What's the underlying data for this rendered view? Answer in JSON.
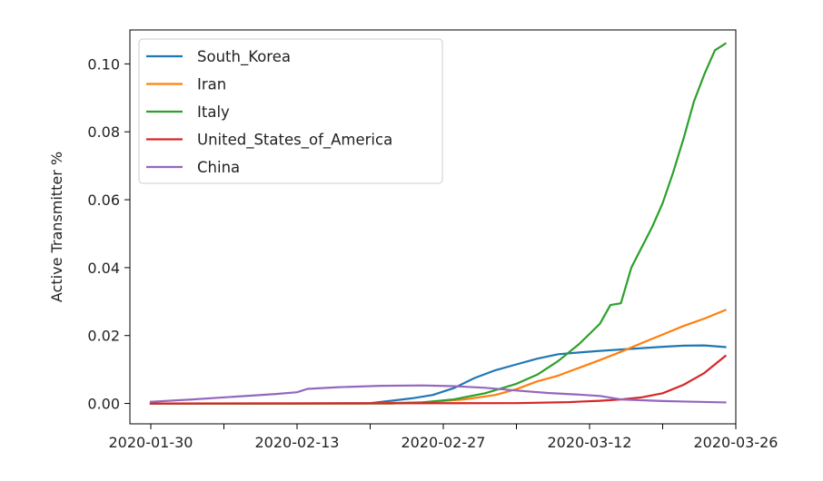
{
  "chart_data": {
    "type": "line",
    "title": "",
    "xlabel": "",
    "ylabel": "Active Transmitter %",
    "x_type": "date",
    "xlim": [
      "2020-01-28",
      "2020-03-26"
    ],
    "ylim": [
      -0.006,
      0.11
    ],
    "x_ticks": [
      "2020-01-30",
      "2020-02-06",
      "2020-02-13",
      "2020-02-20",
      "2020-02-27",
      "2020-03-05",
      "2020-03-12",
      "2020-03-19",
      "2020-03-26"
    ],
    "x_tick_labels": [
      "2020-01-30",
      "",
      "2020-02-13",
      "",
      "2020-02-27",
      "",
      "2020-03-12",
      "",
      "2020-03-26"
    ],
    "y_ticks": [
      0.0,
      0.02,
      0.04,
      0.06,
      0.08,
      0.1
    ],
    "y_tick_labels": [
      "0.00",
      "0.02",
      "0.04",
      "0.06",
      "0.08",
      "0.10"
    ],
    "grid": false,
    "legend_position": "top-left",
    "series": [
      {
        "name": "South_Korea",
        "color": "#1f77b4",
        "points": [
          [
            "2020-01-30",
            0.0
          ],
          [
            "2020-02-13",
            0.0
          ],
          [
            "2020-02-20",
            0.0001
          ],
          [
            "2020-02-22",
            0.0008
          ],
          [
            "2020-02-24",
            0.0015
          ],
          [
            "2020-02-26",
            0.0025
          ],
          [
            "2020-02-28",
            0.0045
          ],
          [
            "2020-03-01",
            0.0075
          ],
          [
            "2020-03-03",
            0.0098
          ],
          [
            "2020-03-05",
            0.0115
          ],
          [
            "2020-03-07",
            0.0132
          ],
          [
            "2020-03-09",
            0.0145
          ],
          [
            "2020-03-11",
            0.015
          ],
          [
            "2020-03-13",
            0.0155
          ],
          [
            "2020-03-15",
            0.0159
          ],
          [
            "2020-03-17",
            0.0163
          ],
          [
            "2020-03-19",
            0.0167
          ],
          [
            "2020-03-21",
            0.017
          ],
          [
            "2020-03-23",
            0.0171
          ],
          [
            "2020-03-25",
            0.0166
          ]
        ]
      },
      {
        "name": "Iran",
        "color": "#ff7f0e",
        "points": [
          [
            "2020-01-30",
            0.0
          ],
          [
            "2020-02-19",
            0.0
          ],
          [
            "2020-02-25",
            0.0003
          ],
          [
            "2020-02-29",
            0.0012
          ],
          [
            "2020-03-03",
            0.0025
          ],
          [
            "2020-03-05",
            0.0042
          ],
          [
            "2020-03-07",
            0.0065
          ],
          [
            "2020-03-09",
            0.0082
          ],
          [
            "2020-03-11",
            0.0105
          ],
          [
            "2020-03-13",
            0.0128
          ],
          [
            "2020-03-15",
            0.0152
          ],
          [
            "2020-03-17",
            0.0178
          ],
          [
            "2020-03-19",
            0.0203
          ],
          [
            "2020-03-21",
            0.0228
          ],
          [
            "2020-03-23",
            0.025
          ],
          [
            "2020-03-25",
            0.0275
          ]
        ]
      },
      {
        "name": "Italy",
        "color": "#2ca02c",
        "points": [
          [
            "2020-01-30",
            0.0
          ],
          [
            "2020-02-22",
            0.0
          ],
          [
            "2020-02-25",
            0.0003
          ],
          [
            "2020-02-28",
            0.0012
          ],
          [
            "2020-03-02",
            0.003
          ],
          [
            "2020-03-05",
            0.0058
          ],
          [
            "2020-03-07",
            0.0085
          ],
          [
            "2020-03-09",
            0.0125
          ],
          [
            "2020-03-11",
            0.0175
          ],
          [
            "2020-03-13",
            0.0235
          ],
          [
            "2020-03-14",
            0.029
          ],
          [
            "2020-03-15",
            0.0295
          ],
          [
            "2020-03-16",
            0.04
          ],
          [
            "2020-03-17",
            0.046
          ],
          [
            "2020-03-18",
            0.052
          ],
          [
            "2020-03-19",
            0.059
          ],
          [
            "2020-03-20",
            0.068
          ],
          [
            "2020-03-21",
            0.078
          ],
          [
            "2020-03-22",
            0.089
          ],
          [
            "2020-03-23",
            0.097
          ],
          [
            "2020-03-24",
            0.104
          ],
          [
            "2020-03-25",
            0.106
          ]
        ]
      },
      {
        "name": "United_States_of_America",
        "color": "#d62728",
        "points": [
          [
            "2020-01-30",
            0.0
          ],
          [
            "2020-03-05",
            0.0001
          ],
          [
            "2020-03-10",
            0.0004
          ],
          [
            "2020-03-13",
            0.0008
          ],
          [
            "2020-03-15",
            0.0012
          ],
          [
            "2020-03-17",
            0.0018
          ],
          [
            "2020-03-19",
            0.003
          ],
          [
            "2020-03-21",
            0.0055
          ],
          [
            "2020-03-23",
            0.009
          ],
          [
            "2020-03-25",
            0.014
          ]
        ]
      },
      {
        "name": "China",
        "color": "#9467bd",
        "points": [
          [
            "2020-01-30",
            0.0005
          ],
          [
            "2020-02-03",
            0.0012
          ],
          [
            "2020-02-07",
            0.002
          ],
          [
            "2020-02-11",
            0.0028
          ],
          [
            "2020-02-13",
            0.0033
          ],
          [
            "2020-02-14",
            0.0043
          ],
          [
            "2020-02-17",
            0.0048
          ],
          [
            "2020-02-21",
            0.0052
          ],
          [
            "2020-02-25",
            0.0053
          ],
          [
            "2020-02-28",
            0.0051
          ],
          [
            "2020-03-02",
            0.0046
          ],
          [
            "2020-03-05",
            0.0038
          ],
          [
            "2020-03-08",
            0.0031
          ],
          [
            "2020-03-11",
            0.0026
          ],
          [
            "2020-03-13",
            0.0022
          ],
          [
            "2020-03-15",
            0.0012
          ],
          [
            "2020-03-19",
            0.0007
          ],
          [
            "2020-03-22",
            0.0005
          ],
          [
            "2020-03-25",
            0.0003
          ]
        ]
      }
    ]
  }
}
